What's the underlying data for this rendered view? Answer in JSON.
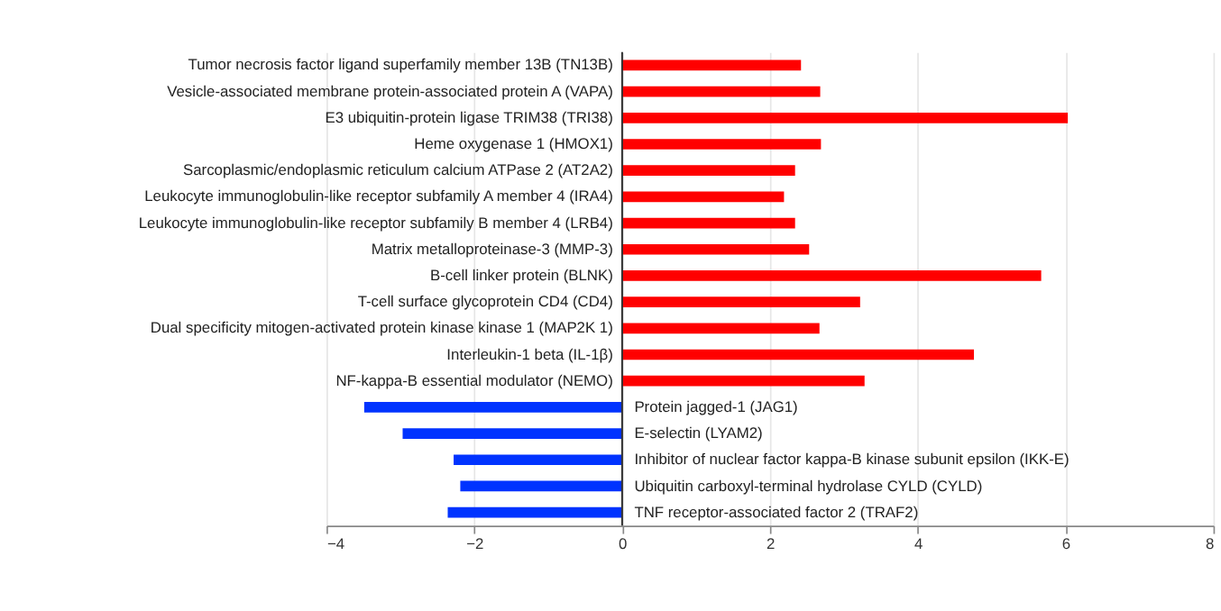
{
  "chart_data": {
    "type": "bar",
    "orientation": "horizontal",
    "categories": [
      "Tumor necrosis factor ligand superfamily member 13B (TN13B)",
      "Vesicle-associated membrane protein-associated protein A (VAPA)",
      "E3 ubiquitin-protein ligase TRIM38 (TRI38)",
      "Heme oxygenase 1 (HMOX1)",
      "Sarcoplasmic/endoplasmic reticulum calcium ATPase 2 (AT2A2)",
      "Leukocyte immunoglobulin-like receptor subfamily A member 4 (IRA4)",
      "Leukocyte immunoglobulin-like receptor subfamily B member 4 (LRB4)",
      "Matrix metalloproteinase-3 (MMP-3)",
      "B-cell linker protein (BLNK)",
      "T-cell surface glycoprotein CD4 (CD4)",
      "Dual specificity mitogen-activated protein kinase kinase 1 (MAP2K 1)",
      "Interleukin-1 beta (IL-1β)",
      "NF-kappa-B essential modulator (NEMO)",
      "Protein jagged-1 (JAG1)",
      "E-selectin (LYAM2)",
      "Inhibitor of nuclear factor kappa-B kinase subunit epsilon (IKK-E)",
      "Ubiquitin carboxyl-terminal hydrolase CYLD (CYLD)",
      "TNF receptor-associated factor 2 (TRAF2)"
    ],
    "values": [
      2.42,
      2.68,
      6.03,
      2.69,
      2.34,
      2.19,
      2.34,
      2.53,
      5.67,
      3.22,
      2.67,
      4.76,
      3.28,
      -3.49,
      -2.97,
      -2.28,
      -2.19,
      -2.36
    ],
    "colors": [
      "#ff0000",
      "#ff0000",
      "#ff0000",
      "#ff0000",
      "#ff0000",
      "#ff0000",
      "#ff0000",
      "#ff0000",
      "#ff0000",
      "#ff0000",
      "#ff0000",
      "#ff0000",
      "#ff0000",
      "#0033ff",
      "#0033ff",
      "#0033ff",
      "#0033ff",
      "#0033ff"
    ],
    "xlim": [
      -4,
      8
    ],
    "xticks": [
      -4,
      -2,
      0,
      2,
      4,
      6,
      8
    ],
    "grid": "x"
  }
}
